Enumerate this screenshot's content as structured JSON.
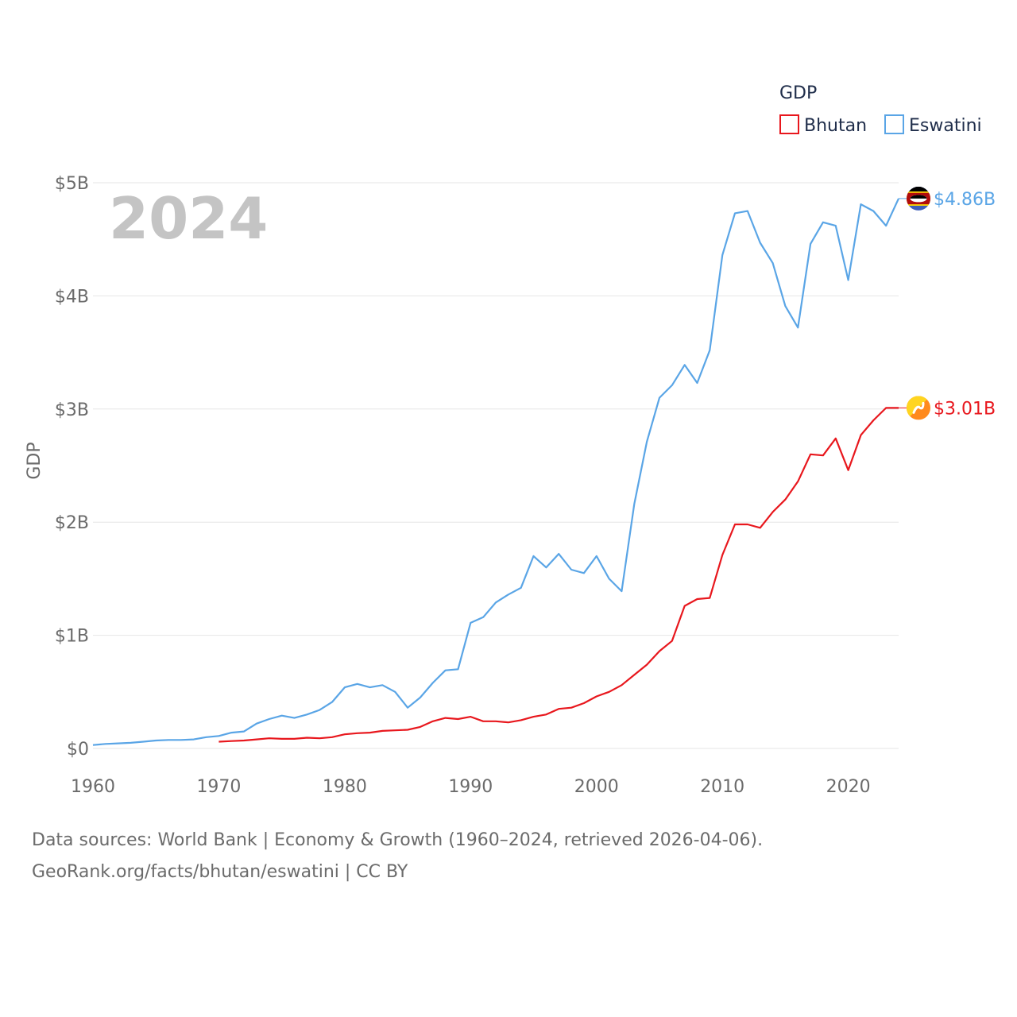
{
  "chart_data": {
    "type": "line",
    "title": "GDP",
    "ylabel": "GDP",
    "xlabel": "",
    "year_label": "2024",
    "xlim": [
      1960,
      2024
    ],
    "ylim": [
      0,
      5
    ],
    "x_ticks": [
      1960,
      1970,
      1980,
      1990,
      2000,
      2010,
      2020
    ],
    "x_tick_labels": [
      "1960",
      "1970",
      "1980",
      "1990",
      "2000",
      "2010",
      "2020"
    ],
    "y_ticks": [
      0,
      1,
      2,
      3,
      4,
      5
    ],
    "y_tick_labels": [
      "$0",
      "$1B",
      "$2B",
      "$3B",
      "$4B",
      "$5B"
    ],
    "legend_position": "top-right",
    "series": [
      {
        "name": "Bhutan",
        "color": "#e8171d",
        "end_label": "$3.01B",
        "start_year": 1970,
        "values": [
          0.06,
          0.065,
          0.07,
          0.08,
          0.09,
          0.085,
          0.085,
          0.095,
          0.09,
          0.1,
          0.125,
          0.135,
          0.14,
          0.155,
          0.16,
          0.165,
          0.19,
          0.24,
          0.27,
          0.26,
          0.28,
          0.24,
          0.24,
          0.23,
          0.25,
          0.28,
          0.3,
          0.35,
          0.36,
          0.4,
          0.46,
          0.5,
          0.56,
          0.65,
          0.74,
          0.86,
          0.95,
          1.26,
          1.32,
          1.33,
          1.71,
          1.98,
          1.98,
          1.95,
          2.09,
          2.2,
          2.36,
          2.6,
          2.59,
          2.74,
          2.46,
          2.77,
          2.9,
          3.01,
          3.01
        ]
      },
      {
        "name": "Eswatini",
        "color": "#5aa5e6",
        "end_label": "$4.86B",
        "start_year": 1960,
        "values": [
          0.03,
          0.04,
          0.045,
          0.05,
          0.06,
          0.07,
          0.075,
          0.075,
          0.08,
          0.1,
          0.11,
          0.14,
          0.15,
          0.22,
          0.26,
          0.29,
          0.27,
          0.3,
          0.34,
          0.41,
          0.54,
          0.57,
          0.54,
          0.56,
          0.5,
          0.36,
          0.45,
          0.58,
          0.69,
          0.7,
          1.11,
          1.16,
          1.29,
          1.36,
          1.42,
          1.7,
          1.6,
          1.72,
          1.58,
          1.55,
          1.7,
          1.5,
          1.39,
          2.16,
          2.71,
          3.1,
          3.21,
          3.39,
          3.23,
          3.52,
          4.36,
          4.73,
          4.75,
          4.47,
          4.29,
          3.91,
          3.72,
          4.46,
          4.65,
          4.62,
          4.14,
          4.81,
          4.75,
          4.62,
          4.86
        ]
      }
    ]
  },
  "footer": {
    "line1": "Data sources: World Bank | Economy & Growth (1960–2024, retrieved 2026-04-06).",
    "line2": "GeoRank.org/facts/bhutan/eswatini | CC BY"
  }
}
